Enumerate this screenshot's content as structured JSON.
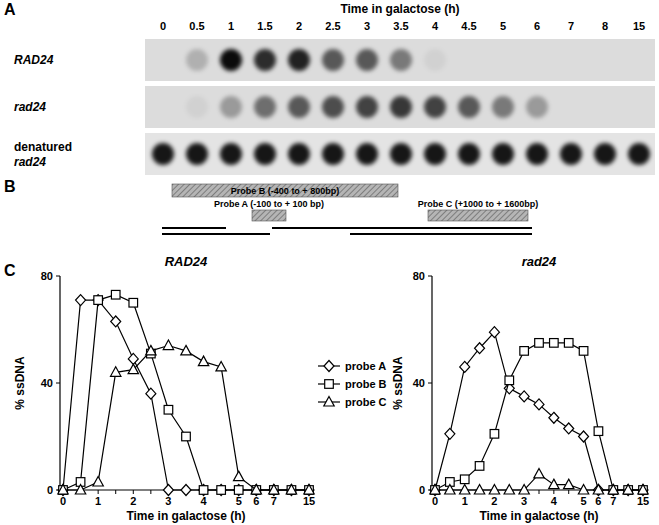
{
  "panel_labels": [
    "A",
    "B",
    "C"
  ],
  "blot": {
    "title": "Time in galactose (h)",
    "times": [
      "0",
      "0.5",
      "1",
      "1.5",
      "2",
      "2.5",
      "3",
      "3.5",
      "4",
      "4.5",
      "5",
      "6",
      "7",
      "8",
      "15"
    ],
    "rows": [
      {
        "label": "RAD24",
        "intensity": [
          0,
          0.2,
          0.95,
          0.8,
          0.85,
          0.6,
          0.6,
          0.45,
          0.05,
          0,
          0,
          0,
          0,
          0,
          0
        ]
      },
      {
        "label": "rad24",
        "intensity": [
          0,
          0.05,
          0.3,
          0.5,
          0.6,
          0.65,
          0.7,
          0.75,
          0.7,
          0.6,
          0.45,
          0.3,
          0,
          0,
          0
        ]
      },
      {
        "label": "denatured rad24",
        "intensity": [
          0.9,
          0.9,
          0.9,
          0.9,
          0.9,
          0.9,
          0.9,
          0.9,
          0.9,
          0.9,
          0.9,
          0.9,
          0.9,
          0.9,
          0.9
        ]
      }
    ]
  },
  "probe_map": {
    "probes": [
      {
        "label": "Probe B (-400 to + 800bp)"
      },
      {
        "label": "Probe A (-100 to + 100 bp)"
      },
      {
        "label": "Probe C (+1000 to + 1600bp)"
      }
    ]
  },
  "chart_data": [
    {
      "type": "line",
      "title": "RAD24",
      "x_label": "Time in galactose (h)",
      "y_label": "% ssDNA",
      "categories": [
        "0",
        null,
        "1",
        null,
        "2",
        null,
        "3",
        null,
        "4",
        null,
        "5",
        "6",
        "7",
        null,
        "15"
      ],
      "ylim": [
        0,
        80
      ],
      "yticks": [
        0,
        40,
        80
      ],
      "grid": false,
      "legend": "right",
      "series": [
        {
          "name": "probe A",
          "color": "#000000",
          "marker": "diamond",
          "line_style": "solid",
          "values": [
            0,
            71,
            71,
            63,
            49,
            36,
            0,
            0,
            0,
            0,
            0,
            0,
            0,
            0,
            0
          ]
        },
        {
          "name": "probe B",
          "color": "#000000",
          "marker": "square",
          "line_style": "solid",
          "values": [
            0,
            3,
            71,
            73,
            70,
            51,
            30,
            20,
            0,
            0,
            0,
            0,
            0,
            0,
            0
          ]
        },
        {
          "name": "probe C",
          "color": "#000000",
          "marker": "triangle",
          "line_style": "solid",
          "values": [
            0,
            0,
            3,
            44,
            45,
            52,
            54,
            52,
            48,
            46,
            5,
            0,
            0,
            0,
            0
          ]
        }
      ]
    },
    {
      "type": "line",
      "title": "rad24",
      "x_label": "Time in galactose (h)",
      "y_label": "% ssDNA",
      "categories": [
        "0",
        null,
        "1",
        null,
        "2",
        null,
        "3",
        null,
        "4",
        null,
        "5",
        "6",
        "7",
        null,
        "15"
      ],
      "ylim": [
        0,
        80
      ],
      "yticks": [
        0,
        40,
        80
      ],
      "grid": false,
      "series": [
        {
          "color": "#000000",
          "marker": "diamond",
          "line_style": "solid",
          "values": [
            0,
            21,
            46,
            53,
            59,
            38,
            35,
            32,
            27,
            23,
            20,
            0,
            0,
            0,
            0
          ]
        },
        {
          "color": "#000000",
          "marker": "square",
          "line_style": "solid",
          "values": [
            0,
            3,
            4,
            9,
            21,
            41,
            52,
            55,
            55,
            55,
            52,
            22,
            0,
            0,
            0
          ]
        },
        {
          "color": "#000000",
          "marker": "triangle",
          "line_style": "solid",
          "values": [
            0,
            0,
            0,
            0,
            0,
            0,
            0,
            6,
            2,
            2,
            0,
            0,
            0,
            0,
            0
          ]
        }
      ]
    }
  ]
}
